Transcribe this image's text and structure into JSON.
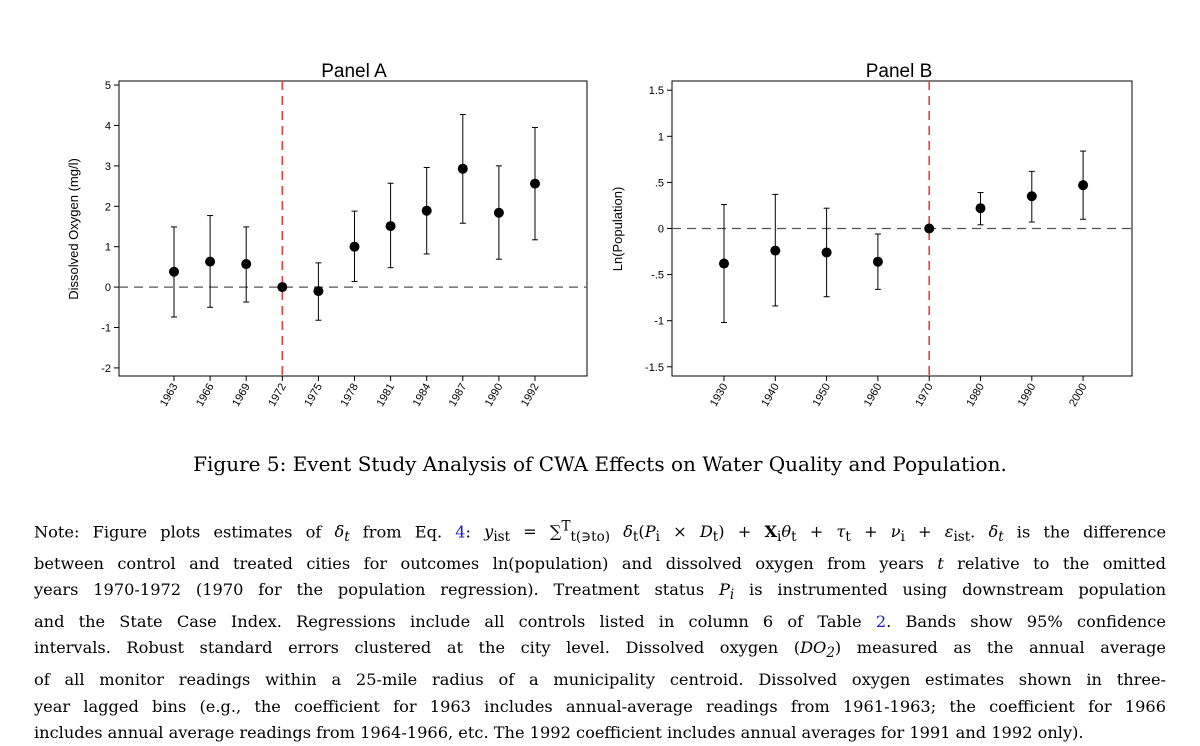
{
  "figure": {
    "caption": "Figure 5: Event Study Analysis of CWA Effects on Water Quality and Population.",
    "note_lines": [
      [
        "Note: Figure plots estimates of ",
        "δt",
        " from Eq. ",
        "4",
        ": ",
        "yist = Σ_{t(∋to)}^{T} δt(Pi × Dt) + Xiθt + τt + νi + εist",
        ". ",
        "δt",
        " is the difference"
      ],
      [
        "between control and treated cities for outcomes ln(population) and dissolved oxygen from years ",
        "t",
        " relative to the omitted"
      ],
      [
        "years 1970-1972 (1970 for the population regression). Treatment status ",
        "Pi",
        " is instrumented using downstream population"
      ],
      [
        "and the State Case Index. Regressions include all controls listed in column 6 of Table ",
        "2",
        ". Bands show 95% confidence"
      ],
      [
        "intervals. Robust standard errors clustered at the city level. Dissolved oxygen (",
        "DO2",
        ") measured as the annual average"
      ],
      [
        "of all monitor readings within a 25-mile radius of a municipality centroid. Dissolved oxygen estimates shown in three-"
      ],
      [
        "year lagged bins (e.g., the coefficient for 1963 includes annual-average readings from 1961-1963; the coefficient for 1966"
      ],
      [
        "includes annual average readings from 1964-1966, etc. The 1992 coefficient includes annual averages for 1991 and 1992 only)."
      ]
    ],
    "note": {
      "l1a": "Note: Figure plots estimates of ",
      "delta": "δ",
      "delta_sub": "t",
      "l1b": " from Eq. ",
      "eq_ref": "4",
      "l1c": ":",
      "l1d": ". ",
      "l1e": " is the difference",
      "l2a": "between control and treated cities for outcomes ln(population) and dissolved oxygen from years ",
      "t_var": "t",
      "l2b": " relative to the omitted",
      "l3a": "years 1970-1972 (1970 for the population regression). Treatment status ",
      "p_var": "P",
      "p_sub": "i",
      "l3b": " is instrumented using downstream population",
      "l4a": "and the State Case Index. Regressions include all controls listed in column 6 of Table ",
      "table_ref": "2",
      "l4b": ". Bands show 95% confidence",
      "l5a": "intervals. Robust standard errors clustered at the city level. Dissolved oxygen (",
      "do_var": "DO",
      "do_sub": "2",
      "l5b": ") measured as the annual average",
      "l6": "of all monitor readings within a 25-mile radius of a municipality centroid. Dissolved oxygen estimates shown in three-",
      "l7": "year lagged bins (e.g., the coefficient for 1963 includes annual-average readings from 1961-1963; the coefficient for 1966",
      "l8": "includes annual average readings from 1964-1966, etc. The 1992 coefficient includes annual averages for 1991 and 1992 only)."
    },
    "equation": {
      "lhs": "y",
      "lhs_sub": "ist",
      "eq": "=",
      "sum": "∑",
      "sum_sup": "T",
      "sum_sub": "t(∋t",
      "sum_sub_o": "o",
      "sum_sub_close": ")",
      "delta": "δ",
      "delta_sub": "t",
      "open": "(",
      "p": "P",
      "p_sub": "i",
      "times": "×",
      "d": "D",
      "d_sub": "t",
      "close": ")",
      "plus1": "+",
      "x": "X",
      "x_sub": "i",
      "theta": "θ",
      "theta_sub": "t",
      "plus2": "+",
      "tau": "τ",
      "tau_sub": "t",
      "plus3": "+",
      "nu": "ν",
      "nu_sub": "i",
      "plus4": "+",
      "eps": "ε",
      "eps_sub": "ist"
    }
  },
  "chart_data": [
    {
      "type": "scatter",
      "title": "Panel A",
      "xlabel": "",
      "ylabel": "Dissolved Oxygen (mg/l)",
      "ylim": [
        -2.2,
        5.1
      ],
      "yticks": [
        "5",
        "4",
        "3",
        "2",
        "1",
        "0",
        "-1",
        "-2"
      ],
      "ytick_values": [
        5,
        4,
        3,
        2,
        1,
        0,
        -1,
        -2
      ],
      "categories": [
        "1963",
        "1966",
        "1969",
        "1972",
        "1975",
        "1978",
        "1981",
        "1984",
        "1987",
        "1990",
        "1992"
      ],
      "values": [
        0.38,
        0.63,
        0.57,
        0.0,
        -0.1,
        1.0,
        1.51,
        1.89,
        2.93,
        1.84,
        2.56
      ],
      "ci_low": [
        -0.74,
        -0.5,
        -0.37,
        0.0,
        -0.82,
        0.14,
        0.48,
        0.82,
        1.58,
        0.69,
        1.17
      ],
      "ci_high": [
        1.49,
        1.77,
        1.49,
        0.0,
        0.6,
        1.88,
        2.57,
        2.96,
        4.27,
        3.0,
        3.95
      ],
      "reference_x": "1972",
      "reference_y": 0,
      "grid": false
    },
    {
      "type": "scatter",
      "title": "Panel B",
      "xlabel": "",
      "ylabel": "Ln(Population)",
      "ylim": [
        -1.6,
        1.6
      ],
      "yticks": [
        "1.5",
        "1",
        ".5",
        "0",
        "-.5",
        "-1",
        "-1.5"
      ],
      "ytick_values": [
        1.5,
        1,
        0.5,
        0,
        -0.5,
        -1,
        -1.5
      ],
      "categories": [
        "1930",
        "1940",
        "1950",
        "1960",
        "1970",
        "1980",
        "1990",
        "2000"
      ],
      "values": [
        -0.38,
        -0.24,
        -0.26,
        -0.36,
        0.0,
        0.22,
        0.35,
        0.47
      ],
      "ci_low": [
        -1.02,
        -0.84,
        -0.74,
        -0.66,
        0.0,
        0.04,
        0.07,
        0.1
      ],
      "ci_high": [
        0.26,
        0.37,
        0.22,
        -0.06,
        0.0,
        0.39,
        0.62,
        0.84
      ],
      "reference_x": "1970",
      "reference_y": 0,
      "grid": false
    }
  ]
}
